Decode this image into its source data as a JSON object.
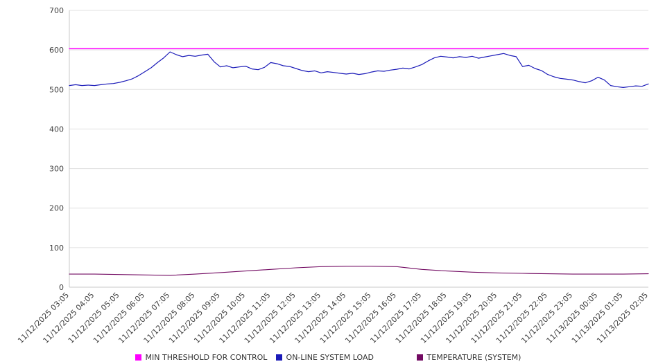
{
  "chart_data": {
    "type": "line",
    "title": "",
    "xlabel": "",
    "ylabel": "",
    "ylim": [
      0,
      700
    ],
    "y_ticks": [
      0,
      100,
      200,
      300,
      400,
      500,
      600,
      700
    ],
    "grid": true,
    "legend_position": "bottom",
    "x_labels": [
      "11/12/2025 03:05",
      "11/12/2025 04:05",
      "11/12/2025 05:05",
      "11/12/2025 06:05",
      "11/12/2025 07:05",
      "11/12/2025 08:05",
      "11/12/2025 09:05",
      "11/12/2025 10:05",
      "11/12/2025 11:05",
      "11/12/2025 12:05",
      "11/12/2025 13:05",
      "11/12/2025 14:05",
      "11/12/2025 15:05",
      "11/12/2025 16:05",
      "11/12/2025 17:05",
      "11/12/2025 18:05",
      "11/12/2025 19:05",
      "11/12/2025 20:05",
      "11/12/2025 21:05",
      "11/12/2025 22:05",
      "11/12/2025 23:05",
      "11/13/2025 00:05",
      "11/13/2025 01:05",
      "11/13/2025 02:05"
    ],
    "series": [
      {
        "name": "MIN THRESHOLD FOR CONTROL",
        "color": "#ff00ff",
        "stroke_width": 1.5,
        "values": [
          603,
          603
        ]
      },
      {
        "name": "ON-LINE SYSTEM LOAD",
        "color": "#1a1ab8",
        "stroke_width": 1.2,
        "values": [
          510,
          512,
          510,
          511,
          510,
          512,
          514,
          515,
          518,
          522,
          527,
          535,
          545,
          555,
          568,
          580,
          595,
          588,
          583,
          586,
          584,
          587,
          589,
          570,
          557,
          560,
          555,
          557,
          559,
          552,
          550,
          556,
          568,
          565,
          560,
          558,
          553,
          548,
          545,
          547,
          542,
          545,
          543,
          541,
          539,
          541,
          538,
          540,
          544,
          547,
          546,
          549,
          551,
          554,
          552,
          557,
          563,
          572,
          580,
          584,
          582,
          580,
          583,
          581,
          584,
          579,
          582,
          585,
          588,
          591,
          586,
          583,
          558,
          561,
          553,
          548,
          538,
          532,
          528,
          526,
          524,
          520,
          517,
          522,
          531,
          524,
          510,
          507,
          505,
          507,
          509,
          508,
          514
        ]
      },
      {
        "name": "TEMPERATURE (SYSTEM)",
        "color": "#720a62",
        "stroke_width": 1.1,
        "values": [
          33,
          33,
          32,
          31,
          30,
          33,
          37,
          41,
          45,
          49,
          52,
          53,
          53,
          52,
          45,
          41,
          38,
          36,
          35,
          34,
          33,
          33,
          33,
          34
        ]
      }
    ]
  },
  "colors": {
    "grid": "#e0e0e0",
    "axis": "#c8c8c8",
    "tick_text": "#404040",
    "background": "#ffffff"
  }
}
